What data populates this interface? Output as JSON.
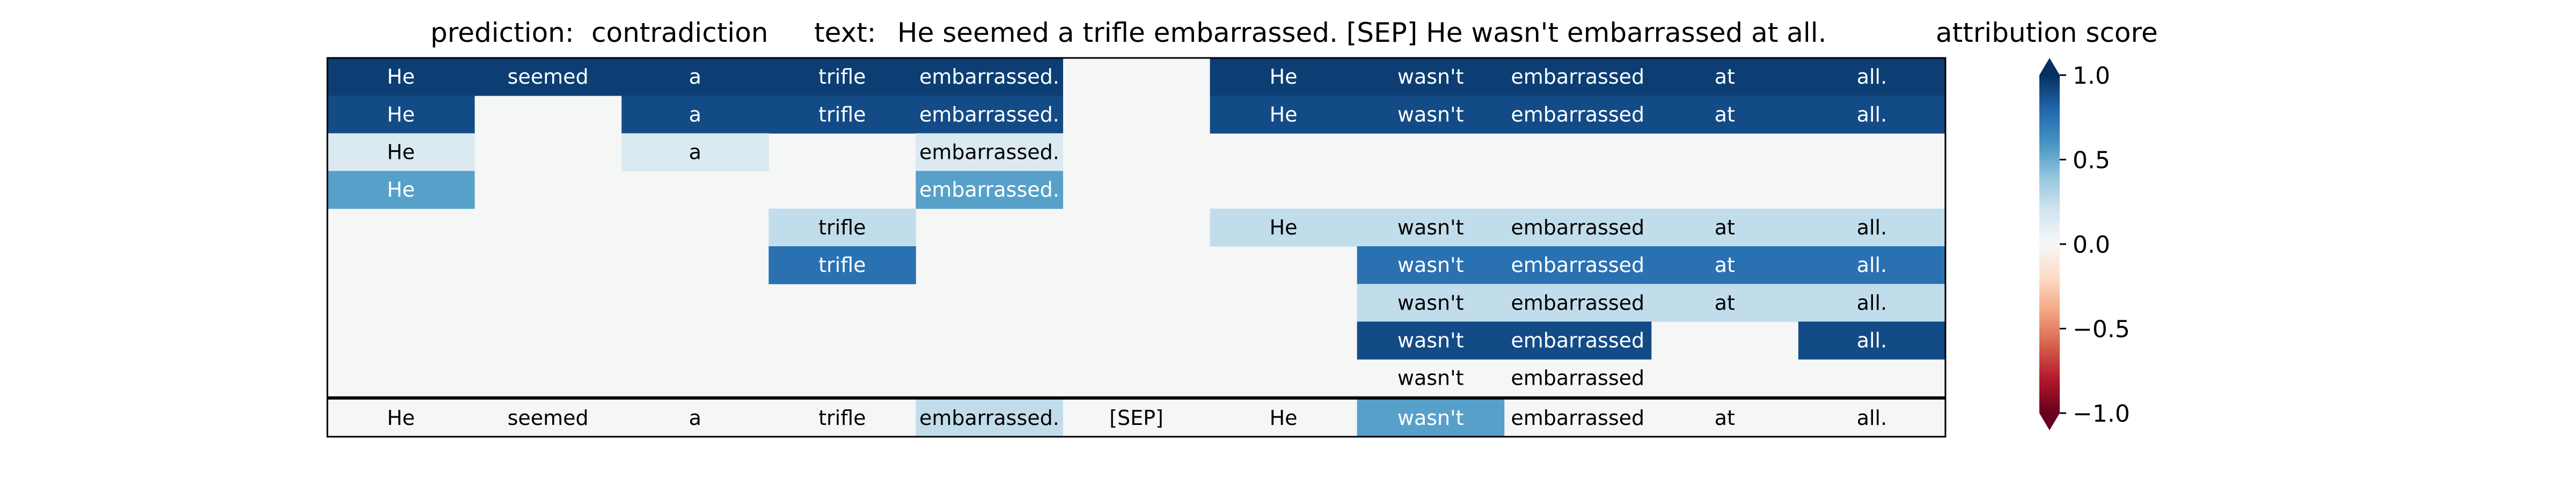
{
  "header": {
    "prediction_label": "prediction:",
    "prediction_value": "contradiction",
    "text_label": "text:",
    "text_value": "He seemed a trifle embarrassed. [SEP] He wasn't embarrassed at all."
  },
  "chart_data": {
    "type": "heatmap",
    "title": "prediction: contradiction text: He seemed a trifle embarrassed. [SEP] He wasn't embarrassed at all.",
    "tokens": [
      "He",
      "seemed",
      "a",
      "trifle",
      "embarrassed.",
      "[SEP]",
      "He",
      "wasn't",
      "embarrassed",
      "at",
      "all."
    ],
    "rows": [
      [
        0.95,
        0.95,
        0.95,
        0.95,
        0.95,
        null,
        0.95,
        0.95,
        0.95,
        0.95,
        0.95
      ],
      [
        0.9,
        null,
        0.9,
        0.9,
        0.9,
        null,
        0.9,
        0.9,
        0.9,
        0.9,
        0.9
      ],
      [
        0.15,
        null,
        0.15,
        null,
        0.15,
        null,
        null,
        null,
        null,
        null,
        null
      ],
      [
        0.55,
        null,
        null,
        null,
        0.55,
        null,
        null,
        null,
        null,
        null,
        null
      ],
      [
        null,
        null,
        null,
        0.25,
        null,
        null,
        0.25,
        0.25,
        0.25,
        0.25,
        0.25
      ],
      [
        null,
        null,
        null,
        0.75,
        null,
        null,
        null,
        0.75,
        0.75,
        0.75,
        0.75
      ],
      [
        null,
        null,
        null,
        null,
        null,
        null,
        null,
        0.25,
        0.25,
        0.25,
        0.25
      ],
      [
        null,
        null,
        null,
        null,
        null,
        null,
        null,
        0.9,
        0.9,
        null,
        0.9
      ],
      [
        null,
        null,
        null,
        null,
        null,
        null,
        null,
        0.0,
        0.0,
        null,
        null
      ]
    ],
    "summary_row": [
      0.0,
      0.0,
      0.0,
      0.0,
      0.25,
      0.0,
      0.0,
      0.55,
      0.0,
      0.0,
      0.0
    ],
    "colorbar": {
      "label": "attribution score",
      "colormap": "RdBu",
      "range": [
        -1.0,
        1.0
      ],
      "ticks": [
        1.0,
        0.5,
        0.0,
        -0.5,
        -1.0
      ],
      "tick_labels": [
        "1.0",
        "0.5",
        "0.0",
        "−0.5",
        "−1.0"
      ]
    }
  }
}
